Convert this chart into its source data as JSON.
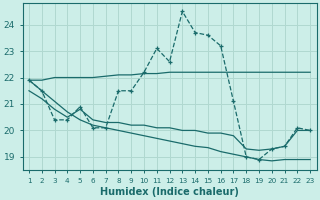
{
  "bg_color": "#cceee8",
  "line_color": "#1a6b6b",
  "grid_color": "#b0d8d0",
  "xlabel": "Humidex (Indice chaleur)",
  "x_ticks": [
    1,
    2,
    3,
    4,
    5,
    6,
    7,
    8,
    9,
    10,
    11,
    12,
    13,
    14,
    15,
    16,
    17,
    18,
    19,
    20,
    21,
    22,
    23
  ],
  "ylim": [
    18.5,
    24.8
  ],
  "y_ticks": [
    19,
    20,
    21,
    22,
    23,
    24
  ],
  "series": [
    {
      "x": [
        1,
        2,
        3,
        4,
        5,
        6,
        7,
        8,
        9,
        10,
        11,
        12,
        13,
        14,
        15,
        16,
        17,
        18,
        19,
        20,
        21,
        22,
        23
      ],
      "y": [
        21.9,
        21.5,
        20.4,
        20.4,
        20.9,
        20.1,
        20.1,
        21.5,
        21.5,
        22.2,
        23.1,
        22.6,
        24.5,
        23.7,
        23.6,
        23.2,
        21.1,
        19.0,
        18.9,
        19.3,
        19.4,
        20.1,
        20.0
      ],
      "linestyle": "--",
      "marker": "+"
    },
    {
      "x": [
        1,
        2,
        3,
        4,
        5,
        6,
        7,
        8,
        9,
        10,
        11,
        12,
        13,
        14,
        15,
        16,
        17,
        18,
        19,
        20,
        21,
        22,
        23
      ],
      "y": [
        21.9,
        21.9,
        22.0,
        22.0,
        22.0,
        22.0,
        22.05,
        22.1,
        22.1,
        22.15,
        22.15,
        22.2,
        22.2,
        22.2,
        22.2,
        22.2,
        22.2,
        22.2,
        22.2,
        22.2,
        22.2,
        22.2,
        22.2
      ],
      "linestyle": "-",
      "marker": null
    },
    {
      "x": [
        1,
        2,
        3,
        4,
        5,
        6,
        7,
        8,
        9,
        10,
        11,
        12,
        13,
        14,
        15,
        16,
        17,
        18,
        19,
        20,
        21,
        22,
        23
      ],
      "y": [
        21.5,
        21.2,
        20.8,
        20.5,
        20.8,
        20.4,
        20.3,
        20.3,
        20.2,
        20.2,
        20.1,
        20.1,
        20.0,
        20.0,
        19.9,
        19.9,
        19.8,
        19.3,
        19.25,
        19.3,
        19.4,
        20.0,
        20.0
      ],
      "linestyle": "-",
      "marker": null
    },
    {
      "x": [
        1,
        2,
        3,
        4,
        5,
        6,
        7,
        8,
        9,
        10,
        11,
        12,
        13,
        14,
        15,
        16,
        17,
        18,
        19,
        20,
        21,
        22,
        23
      ],
      "y": [
        21.9,
        21.5,
        21.1,
        20.7,
        20.4,
        20.2,
        20.1,
        20.0,
        19.9,
        19.8,
        19.7,
        19.6,
        19.5,
        19.4,
        19.35,
        19.2,
        19.1,
        19.0,
        18.9,
        18.85,
        18.9,
        18.9,
        18.9
      ],
      "linestyle": "-",
      "marker": null
    }
  ]
}
